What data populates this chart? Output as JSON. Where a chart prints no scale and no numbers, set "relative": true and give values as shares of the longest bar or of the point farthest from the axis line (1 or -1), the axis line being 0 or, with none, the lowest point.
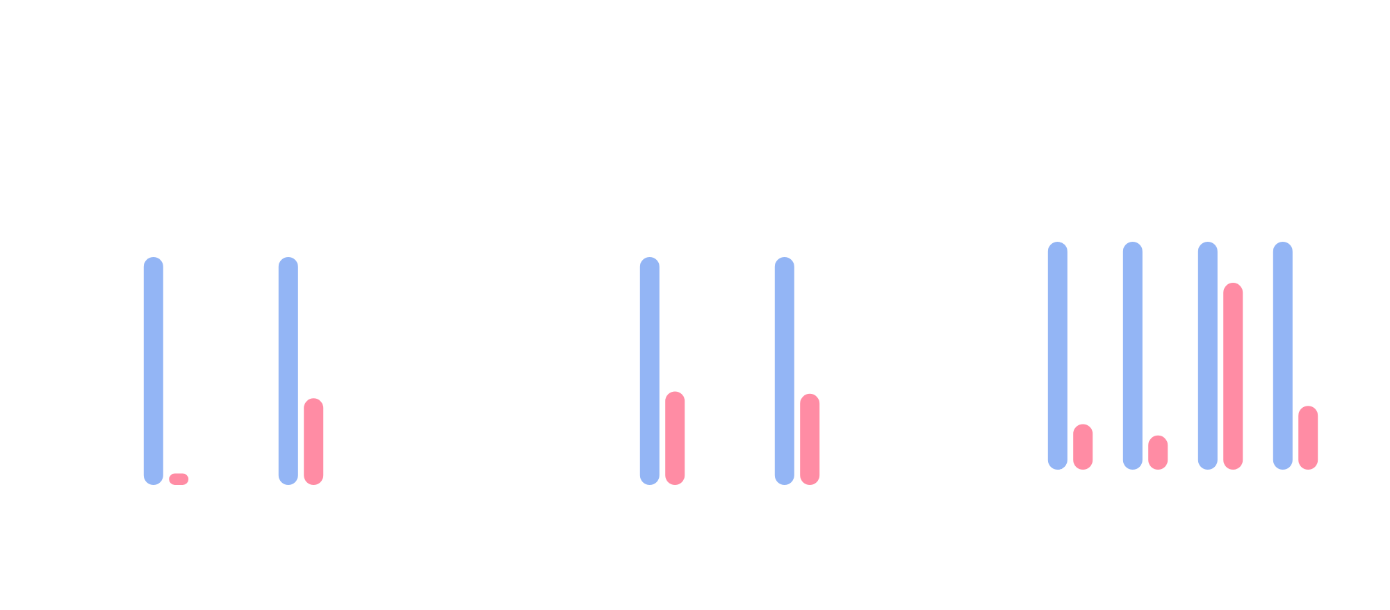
{
  "chart_data": [
    {
      "type": "bar",
      "relative": true,
      "categories": [
        null,
        null
      ],
      "series": [
        {
          "color": "#93b5f5",
          "values": [
            1,
            1
          ]
        },
        {
          "color": "#ff8ca4",
          "values": [
            0.05,
            0.38
          ]
        }
      ]
    },
    {
      "type": "bar",
      "relative": true,
      "categories": [
        null,
        null
      ],
      "series": [
        {
          "color": "#93b5f5",
          "values": [
            1,
            1
          ]
        },
        {
          "color": "#ff8ca4",
          "values": [
            0.41,
            0.4
          ]
        }
      ]
    },
    {
      "type": "bar",
      "relative": true,
      "categories": [
        null,
        null,
        null,
        null
      ],
      "series": [
        {
          "color": "#93b5f5",
          "values": [
            1,
            1,
            1,
            1
          ]
        },
        {
          "color": "#ff8ca4",
          "values": [
            0.2,
            0.15,
            0.82,
            0.28
          ]
        }
      ]
    }
  ]
}
